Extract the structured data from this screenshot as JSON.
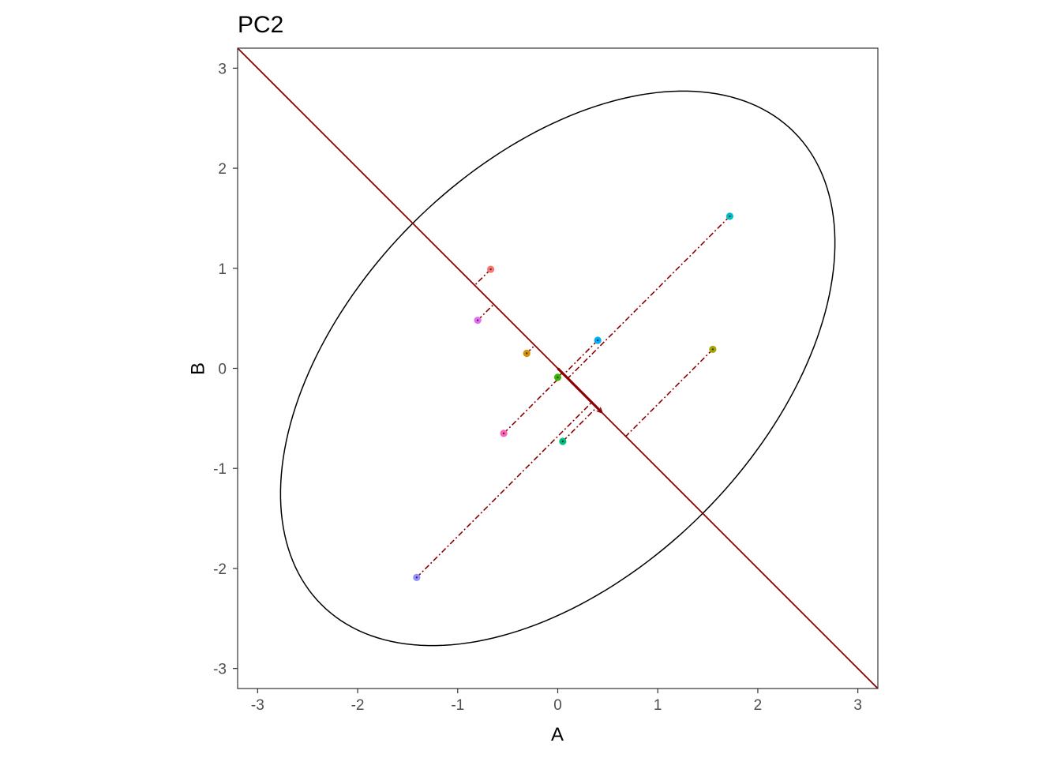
{
  "chart_data": {
    "type": "scatter",
    "title": "PC2",
    "xlabel": "A",
    "ylabel": "B",
    "xlim": [
      -3.2,
      3.2
    ],
    "ylim": [
      -3.2,
      3.2
    ],
    "x_ticks": [
      -3,
      -2,
      -1,
      0,
      1,
      2,
      3
    ],
    "y_ticks": [
      -3,
      -2,
      -1,
      0,
      1,
      2,
      3
    ],
    "x_tick_labels": [
      "-3",
      "-2",
      "-1",
      "0",
      "1",
      "2",
      "3"
    ],
    "y_tick_labels": [
      "-3",
      "-2",
      "-1",
      "0",
      "1",
      "2",
      "3"
    ],
    "grid": false,
    "legend": "none",
    "points": [
      {
        "x": -0.67,
        "y": 0.99,
        "color": "#F8766D"
      },
      {
        "x": -0.31,
        "y": 0.15,
        "color": "#D89000"
      },
      {
        "x": 1.55,
        "y": 0.19,
        "color": "#A3A500"
      },
      {
        "x": 0.0,
        "y": -0.09,
        "color": "#39B600"
      },
      {
        "x": 0.05,
        "y": -0.73,
        "color": "#00BF7D"
      },
      {
        "x": 1.72,
        "y": 1.52,
        "color": "#00BFC4"
      },
      {
        "x": 0.4,
        "y": 0.28,
        "color": "#00B0F6"
      },
      {
        "x": -1.41,
        "y": -2.09,
        "color": "#9590FF"
      },
      {
        "x": -0.8,
        "y": 0.48,
        "color": "#E76BF3"
      },
      {
        "x": -0.54,
        "y": -0.65,
        "color": "#FF62BC"
      }
    ],
    "ellipse": {
      "center": [
        0,
        0
      ],
      "semi_major": 3.34,
      "semi_minor": 2.05,
      "angle_deg": 45
    },
    "pc_line": {
      "slope": -1,
      "intercept": 0,
      "color": "#8B0000"
    },
    "pc_arrow": {
      "from": [
        0,
        0
      ],
      "to": [
        0.44,
        -0.44
      ],
      "color": "#8B0000"
    },
    "projection_color": "#8B0000"
  }
}
